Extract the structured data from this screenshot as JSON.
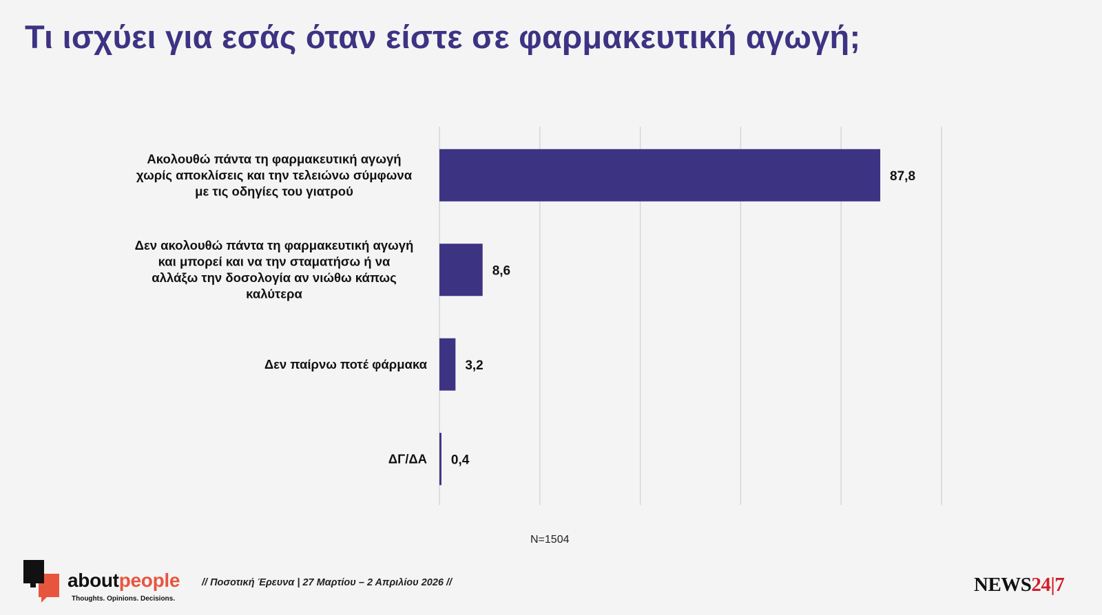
{
  "title": "Τι ισχύει για εσάς όταν είστε σε φαρμακευτική αγωγή;",
  "chart_data": {
    "type": "bar",
    "orientation": "horizontal",
    "categories": [
      [
        "Ακολουθώ πάντα τη φαρμακευτική αγωγή",
        "χωρίς αποκλίσεις και την τελειώνω σύμφωνα",
        "με τις οδηγίες του γιατρού"
      ],
      [
        "Δεν ακολουθώ πάντα τη φαρμακευτική αγωγή",
        "και μπορεί και να την σταματήσω ή να",
        "αλλάξω την δοσολογία αν νιώθω κάπως",
        "καλύτερα"
      ],
      [
        "Δεν παίρνω ποτέ φάρμακα"
      ],
      [
        "ΔΓ/ΔΑ"
      ]
    ],
    "values": [
      87.8,
      8.6,
      3.2,
      0.4
    ],
    "value_labels": [
      "87,8",
      "8,6",
      "3,2",
      "0,4"
    ],
    "xlim": [
      0,
      100
    ],
    "gridlines": [
      0,
      20,
      40,
      60,
      80,
      100
    ],
    "bar_color": "#3d3383",
    "grid_color": "#d6d6d6",
    "xlabel": "",
    "ylabel": ""
  },
  "sample_size": "N=1504",
  "footer": {
    "brand_main": "about",
    "brand_accent": "people",
    "tagline": "Thoughts. Opinions. Decisions.",
    "survey": "// Ποσοτική Έρευνα | 27 Μαρτίου – 2 Απριλίου 2026 //",
    "news_main": "NEWS",
    "news_accent": "24|7"
  },
  "colors": {
    "title": "#3d3383",
    "accent": "#e8553f",
    "news_accent": "#d21f2b"
  }
}
